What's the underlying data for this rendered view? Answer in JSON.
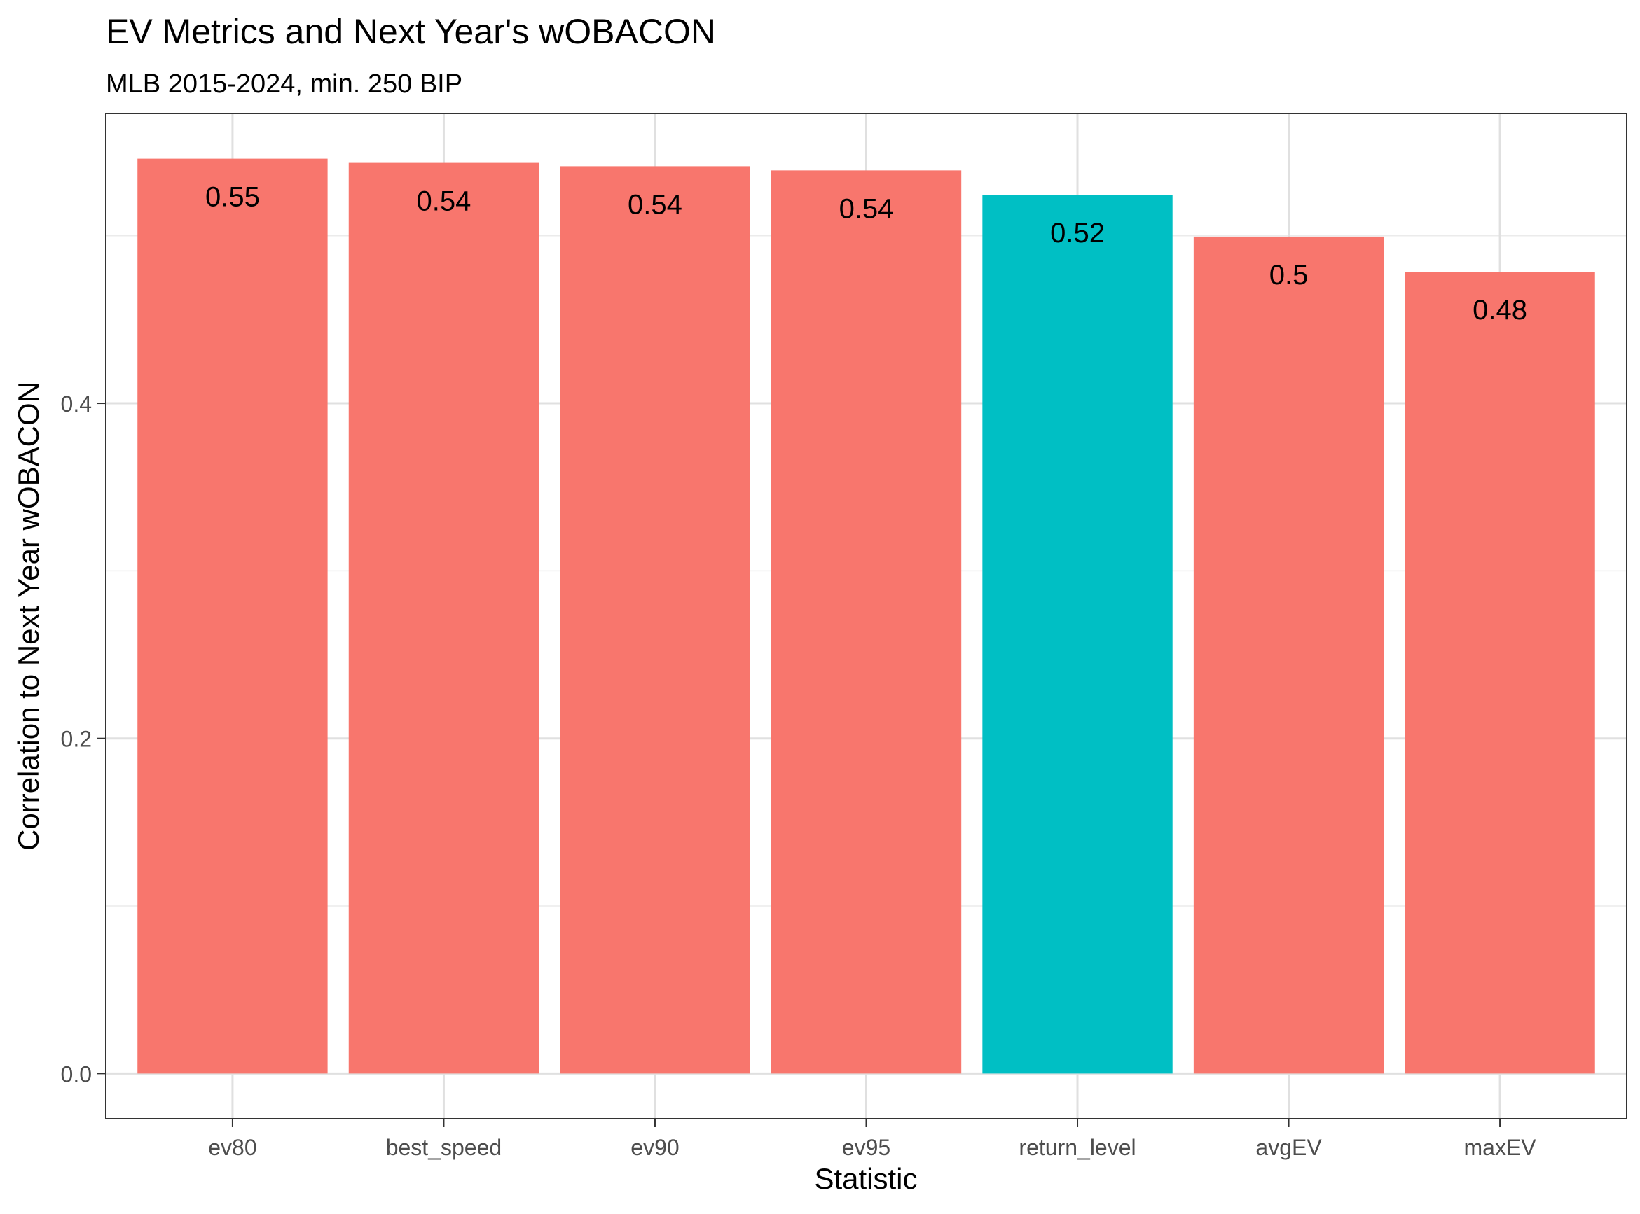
{
  "chart_data": {
    "type": "bar",
    "title": "EV Metrics and Next Year's wOBACON",
    "subtitle": "MLB 2015-2024, min. 250 BIP",
    "xlabel": "Statistic",
    "ylabel": "Correlation to Next Year wOBACON",
    "categories": [
      "ev80",
      "best_speed",
      "ev90",
      "ev95",
      "return_level",
      "avgEV",
      "maxEV"
    ],
    "values": [
      0.546,
      0.5435,
      0.5415,
      0.539,
      0.5245,
      0.4995,
      0.4785
    ],
    "labels": [
      "0.55",
      "0.54",
      "0.54",
      "0.54",
      "0.52",
      "0.5",
      "0.48"
    ],
    "highlight": [
      false,
      false,
      false,
      false,
      true,
      false,
      false
    ],
    "colors": {
      "default": "#F8766D",
      "highlight": "#00BFC4"
    },
    "yticks": [
      0.0,
      0.2,
      0.4
    ],
    "ytick_labels": [
      "0.0",
      "0.2",
      "0.4"
    ],
    "ylim": [
      -0.027,
      0.573
    ],
    "grid": true,
    "legend": "none"
  }
}
